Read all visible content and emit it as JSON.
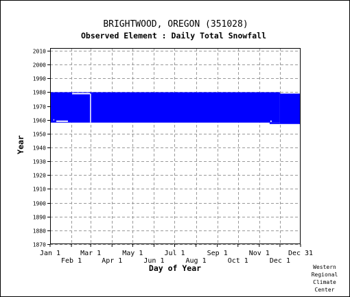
{
  "chart_data": {
    "type": "bar",
    "title": "BRIGHTWOOD, OREGON   (351028)",
    "subtitle": "Observed Element : Daily Total Snowfall",
    "xlabel": "Day of Year",
    "ylabel": "Year",
    "x_range": [
      1,
      365
    ],
    "ylim": [
      1870,
      2012
    ],
    "y_ticks": [
      1870,
      1880,
      1890,
      1900,
      1910,
      1920,
      1930,
      1940,
      1950,
      1960,
      1970,
      1980,
      1990,
      2000,
      2010
    ],
    "x_ticks_upper": [
      {
        "label": "Jan 1",
        "day": 1
      },
      {
        "label": "Mar 1",
        "day": 60
      },
      {
        "label": "May 1",
        "day": 121
      },
      {
        "label": "Jul 1",
        "day": 182
      },
      {
        "label": "Sep 1",
        "day": 244
      },
      {
        "label": "Nov 1",
        "day": 305
      },
      {
        "label": "Dec 31",
        "day": 365
      }
    ],
    "x_ticks_lower": [
      {
        "label": "Feb 1",
        "day": 32
      },
      {
        "label": "Apr 1",
        "day": 91
      },
      {
        "label": "Jun 1",
        "day": 152
      },
      {
        "label": "Aug 1",
        "day": 213
      },
      {
        "label": "Oct 1",
        "day": 274
      },
      {
        "label": "Dec 1",
        "day": 335
      }
    ],
    "grid": true,
    "data_color": "#0000ff",
    "coverage": [
      {
        "start_day": 1,
        "end_day": 334,
        "start_year": 1958,
        "end_year": 1980
      },
      {
        "start_day": 320,
        "end_day": 334,
        "start_year": 1957,
        "end_year": 1958
      },
      {
        "start_day": 335,
        "end_day": 365,
        "start_year": 1957,
        "end_year": 1979
      }
    ],
    "gaps": [
      {
        "start_day": 33,
        "end_day": 59,
        "year": 1979
      },
      {
        "start_day": 59,
        "end_day": 60,
        "start_year": 1958,
        "end_year": 1979
      },
      {
        "start_day": 10,
        "end_day": 27,
        "year": 1959
      },
      {
        "start_day": 6,
        "end_day": 7,
        "year": 1960
      },
      {
        "start_day": 321,
        "end_day": 323,
        "year": 1959
      }
    ]
  },
  "credit": {
    "line1": "Western",
    "line2": "Regional",
    "line3": "Climate",
    "line4": "Center"
  }
}
